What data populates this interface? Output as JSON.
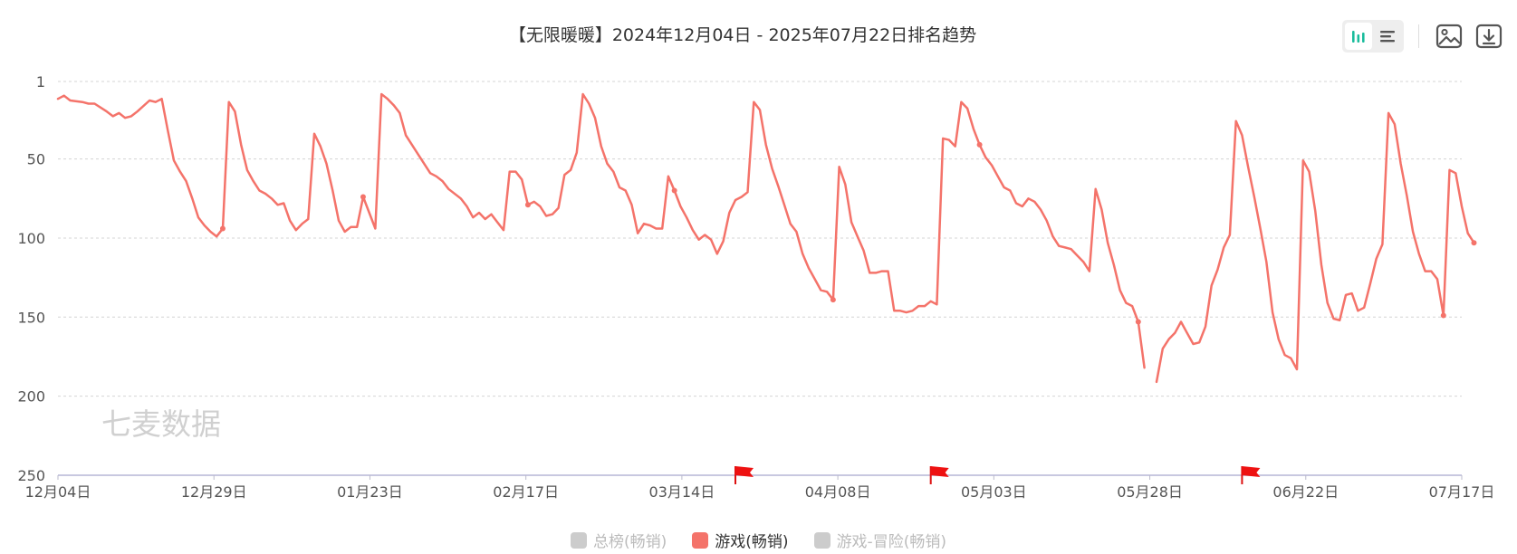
{
  "title": "【无限暖暖】2024年12月04日 - 2025年07月22日排名趋势",
  "watermark": "七麦数据",
  "toolbar": {
    "icons": [
      "bar-chart-icon",
      "list-icon",
      "image-save-icon",
      "download-icon"
    ],
    "active_color": "#1abc9c",
    "icon_color": "#555555"
  },
  "legend": [
    {
      "label": "总榜(畅销)",
      "active": false,
      "color": "#cccccc"
    },
    {
      "label": "游戏(畅销)",
      "active": true,
      "color": "#f4736a"
    },
    {
      "label": "游戏-冒险(畅销)",
      "active": false,
      "color": "#cccccc"
    }
  ],
  "chart_data": {
    "type": "line",
    "y_inverted": true,
    "ylim": [
      1,
      250
    ],
    "y_ticks": [
      "1",
      "50",
      "100",
      "150",
      "200",
      "250"
    ],
    "x_start": "2024-12-04",
    "x_end": "2025-07-22",
    "x_ticks": [
      "12月04日",
      "12月29日",
      "01月23日",
      "02月17日",
      "03月14日",
      "04月08日",
      "05月03日",
      "05月28日",
      "06月22日",
      "07月17日"
    ],
    "flags": [
      "2025-03-25",
      "2025-04-26",
      "2025-06-16"
    ],
    "grid": true,
    "series": [
      {
        "name": "游戏(畅销)",
        "color": "#f4736a",
        "points": [
          [
            "2024-12-04",
            12
          ],
          [
            "2024-12-05",
            10
          ],
          [
            "2024-12-06",
            13
          ],
          [
            "2024-12-08",
            14
          ],
          [
            "2024-12-09",
            15
          ],
          [
            "2024-12-10",
            15
          ],
          [
            "2024-12-12",
            20
          ],
          [
            "2024-12-13",
            23
          ],
          [
            "2024-12-14",
            21
          ],
          [
            "2024-12-15",
            24
          ],
          [
            "2024-12-16",
            23
          ],
          [
            "2024-12-17",
            20
          ],
          [
            "2024-12-19",
            13
          ],
          [
            "2024-12-20",
            14
          ],
          [
            "2024-12-21",
            12
          ],
          [
            "2024-12-22",
            32
          ],
          [
            "2024-12-23",
            51
          ],
          [
            "2024-12-24",
            58
          ],
          [
            "2024-12-25",
            64
          ],
          [
            "2024-12-26",
            75
          ],
          [
            "2024-12-27",
            87
          ],
          [
            "2024-12-28",
            92
          ],
          [
            "2024-12-29",
            96
          ],
          [
            "2024-12-30",
            99
          ],
          [
            "2024-12-31",
            94
          ],
          [
            "2025-01-01",
            14
          ],
          [
            "2025-01-02",
            20
          ],
          [
            "2025-01-03",
            41
          ],
          [
            "2025-01-04",
            57
          ],
          [
            "2025-01-05",
            64
          ],
          [
            "2025-01-06",
            70
          ],
          [
            "2025-01-07",
            72
          ],
          [
            "2025-01-08",
            75
          ],
          [
            "2025-01-09",
            79
          ],
          [
            "2025-01-10",
            78
          ],
          [
            "2025-01-11",
            89
          ],
          [
            "2025-01-12",
            95
          ],
          [
            "2025-01-13",
            91
          ],
          [
            "2025-01-14",
            88
          ],
          [
            "2025-01-15",
            34
          ],
          [
            "2025-01-16",
            42
          ],
          [
            "2025-01-17",
            53
          ],
          [
            "2025-01-18",
            70
          ],
          [
            "2025-01-19",
            89
          ],
          [
            "2025-01-20",
            96
          ],
          [
            "2025-01-21",
            93
          ],
          [
            "2025-01-22",
            93
          ],
          [
            "2025-01-23",
            74
          ],
          [
            "2025-01-24",
            84
          ],
          [
            "2025-01-25",
            94
          ],
          [
            "2025-01-26",
            9
          ],
          [
            "2025-01-27",
            12
          ],
          [
            "2025-01-28",
            16
          ],
          [
            "2025-01-29",
            21
          ],
          [
            "2025-01-30",
            35
          ],
          [
            "2025-02-01",
            47
          ],
          [
            "2025-02-03",
            59
          ],
          [
            "2025-02-04",
            61
          ],
          [
            "2025-02-05",
            64
          ],
          [
            "2025-02-06",
            69
          ],
          [
            "2025-02-08",
            75
          ],
          [
            "2025-02-09",
            80
          ],
          [
            "2025-02-10",
            87
          ],
          [
            "2025-02-11",
            84
          ],
          [
            "2025-02-12",
            88
          ],
          [
            "2025-02-13",
            85
          ],
          [
            "2025-02-14",
            90
          ],
          [
            "2025-02-15",
            95
          ],
          [
            "2025-02-16",
            58
          ],
          [
            "2025-02-17",
            58
          ],
          [
            "2025-02-18",
            63
          ],
          [
            "2025-02-19",
            79
          ],
          [
            "2025-02-20",
            77
          ],
          [
            "2025-02-21",
            80
          ],
          [
            "2025-02-22",
            86
          ],
          [
            "2025-02-23",
            85
          ],
          [
            "2025-02-24",
            81
          ],
          [
            "2025-02-25",
            60
          ],
          [
            "2025-02-26",
            57
          ],
          [
            "2025-02-27",
            46
          ],
          [
            "2025-02-28",
            9
          ],
          [
            "2025-03-01",
            15
          ],
          [
            "2025-03-02",
            24
          ],
          [
            "2025-03-03",
            42
          ],
          [
            "2025-03-04",
            53
          ],
          [
            "2025-03-05",
            58
          ],
          [
            "2025-03-06",
            68
          ],
          [
            "2025-03-07",
            70
          ],
          [
            "2025-03-08",
            79
          ],
          [
            "2025-03-09",
            97
          ],
          [
            "2025-03-10",
            91
          ],
          [
            "2025-03-11",
            92
          ],
          [
            "2025-03-12",
            94
          ],
          [
            "2025-03-13",
            94
          ],
          [
            "2025-03-14",
            61
          ],
          [
            "2025-03-15",
            70
          ],
          [
            "2025-03-16",
            80
          ],
          [
            "2025-03-17",
            87
          ],
          [
            "2025-03-18",
            95
          ],
          [
            "2025-03-19",
            101
          ],
          [
            "2025-03-20",
            98
          ],
          [
            "2025-03-21",
            101
          ],
          [
            "2025-03-22",
            110
          ],
          [
            "2025-03-23",
            102
          ],
          [
            "2025-03-24",
            84
          ],
          [
            "2025-03-25",
            76
          ],
          [
            "2025-03-26",
            74
          ],
          [
            "2025-03-27",
            71
          ],
          [
            "2025-03-28",
            14
          ],
          [
            "2025-03-29",
            19
          ],
          [
            "2025-03-30",
            41
          ],
          [
            "2025-03-31",
            56
          ],
          [
            "2025-04-01",
            67
          ],
          [
            "2025-04-02",
            79
          ],
          [
            "2025-04-03",
            91
          ],
          [
            "2025-04-04",
            96
          ],
          [
            "2025-04-05",
            110
          ],
          [
            "2025-04-06",
            119
          ],
          [
            "2025-04-07",
            126
          ],
          [
            "2025-04-08",
            133
          ],
          [
            "2025-04-09",
            134
          ],
          [
            "2025-04-10",
            139
          ],
          [
            "2025-04-11",
            55
          ],
          [
            "2025-04-12",
            66
          ],
          [
            "2025-04-13",
            90
          ],
          [
            "2025-04-14",
            99
          ],
          [
            "2025-04-15",
            108
          ],
          [
            "2025-04-16",
            122
          ],
          [
            "2025-04-17",
            122
          ],
          [
            "2025-04-18",
            121
          ],
          [
            "2025-04-19",
            121
          ],
          [
            "2025-04-20",
            146
          ],
          [
            "2025-04-21",
            146
          ],
          [
            "2025-04-22",
            147
          ],
          [
            "2025-04-23",
            146
          ],
          [
            "2025-04-24",
            143
          ],
          [
            "2025-04-25",
            143
          ],
          [
            "2025-04-26",
            140
          ],
          [
            "2025-04-27",
            142
          ],
          [
            "2025-04-28",
            37
          ],
          [
            "2025-04-29",
            38
          ],
          [
            "2025-04-30",
            42
          ],
          [
            "2025-05-01",
            14
          ],
          [
            "2025-05-02",
            18
          ],
          [
            "2025-05-03",
            31
          ],
          [
            "2025-05-04",
            41
          ],
          [
            "2025-05-05",
            49
          ],
          [
            "2025-05-06",
            54
          ],
          [
            "2025-05-07",
            61
          ],
          [
            "2025-05-08",
            68
          ],
          [
            "2025-05-09",
            70
          ],
          [
            "2025-05-10",
            78
          ],
          [
            "2025-05-11",
            80
          ],
          [
            "2025-05-12",
            75
          ],
          [
            "2025-05-13",
            77
          ],
          [
            "2025-05-14",
            82
          ],
          [
            "2025-05-15",
            89
          ],
          [
            "2025-05-16",
            99
          ],
          [
            "2025-05-17",
            105
          ],
          [
            "2025-05-18",
            106
          ],
          [
            "2025-05-19",
            107
          ],
          [
            "2025-05-20",
            111
          ],
          [
            "2025-05-21",
            115
          ],
          [
            "2025-05-22",
            121
          ],
          [
            "2025-05-23",
            69
          ],
          [
            "2025-05-24",
            82
          ],
          [
            "2025-05-25",
            103
          ],
          [
            "2025-05-26",
            117
          ],
          [
            "2025-05-27",
            133
          ],
          [
            "2025-05-28",
            141
          ],
          [
            "2025-05-29",
            143
          ],
          [
            "2025-05-30",
            153
          ],
          [
            "2025-05-31",
            182
          ],
          null,
          [
            "2025-06-02",
            191
          ],
          [
            "2025-06-03",
            170
          ],
          [
            "2025-06-04",
            164
          ],
          [
            "2025-06-05",
            160
          ],
          [
            "2025-06-06",
            153
          ],
          [
            "2025-06-07",
            160
          ],
          [
            "2025-06-08",
            167
          ],
          [
            "2025-06-09",
            166
          ],
          [
            "2025-06-10",
            156
          ],
          [
            "2025-06-11",
            130
          ],
          [
            "2025-06-12",
            120
          ],
          [
            "2025-06-13",
            106
          ],
          [
            "2025-06-14",
            98
          ],
          [
            "2025-06-15",
            26
          ],
          [
            "2025-06-16",
            35
          ],
          [
            "2025-06-17",
            55
          ],
          [
            "2025-06-18",
            74
          ],
          [
            "2025-06-19",
            94
          ],
          [
            "2025-06-20",
            115
          ],
          [
            "2025-06-21",
            147
          ],
          [
            "2025-06-22",
            164
          ],
          [
            "2025-06-23",
            174
          ],
          [
            "2025-06-24",
            176
          ],
          [
            "2025-06-25",
            183
          ],
          [
            "2025-06-26",
            51
          ],
          [
            "2025-06-27",
            58
          ],
          [
            "2025-06-28",
            83
          ],
          [
            "2025-06-29",
            117
          ],
          [
            "2025-06-30",
            141
          ],
          [
            "2025-07-01",
            151
          ],
          [
            "2025-07-02",
            152
          ],
          [
            "2025-07-03",
            136
          ],
          [
            "2025-07-04",
            135
          ],
          [
            "2025-07-05",
            146
          ],
          [
            "2025-07-06",
            144
          ],
          [
            "2025-07-07",
            129
          ],
          [
            "2025-07-08",
            113
          ],
          [
            "2025-07-09",
            104
          ],
          [
            "2025-07-10",
            21
          ],
          [
            "2025-07-11",
            28
          ],
          [
            "2025-07-12",
            53
          ],
          [
            "2025-07-13",
            73
          ],
          [
            "2025-07-14",
            96
          ],
          [
            "2025-07-15",
            110
          ],
          [
            "2025-07-16",
            121
          ],
          [
            "2025-07-17",
            121
          ],
          [
            "2025-07-18",
            126
          ],
          [
            "2025-07-19",
            149
          ],
          [
            "2025-07-20",
            57
          ],
          [
            "2025-07-21",
            59
          ],
          [
            "2025-07-22",
            80
          ],
          [
            "2025-07-23",
            97
          ],
          [
            "2025-07-24",
            103
          ]
        ],
        "markers": [
          "2024-12-31",
          "2025-01-23",
          "2025-02-19",
          "2025-03-15",
          "2025-04-10",
          "2025-05-04",
          "2025-05-30",
          "2025-07-19",
          "2025-07-24"
        ]
      }
    ]
  }
}
